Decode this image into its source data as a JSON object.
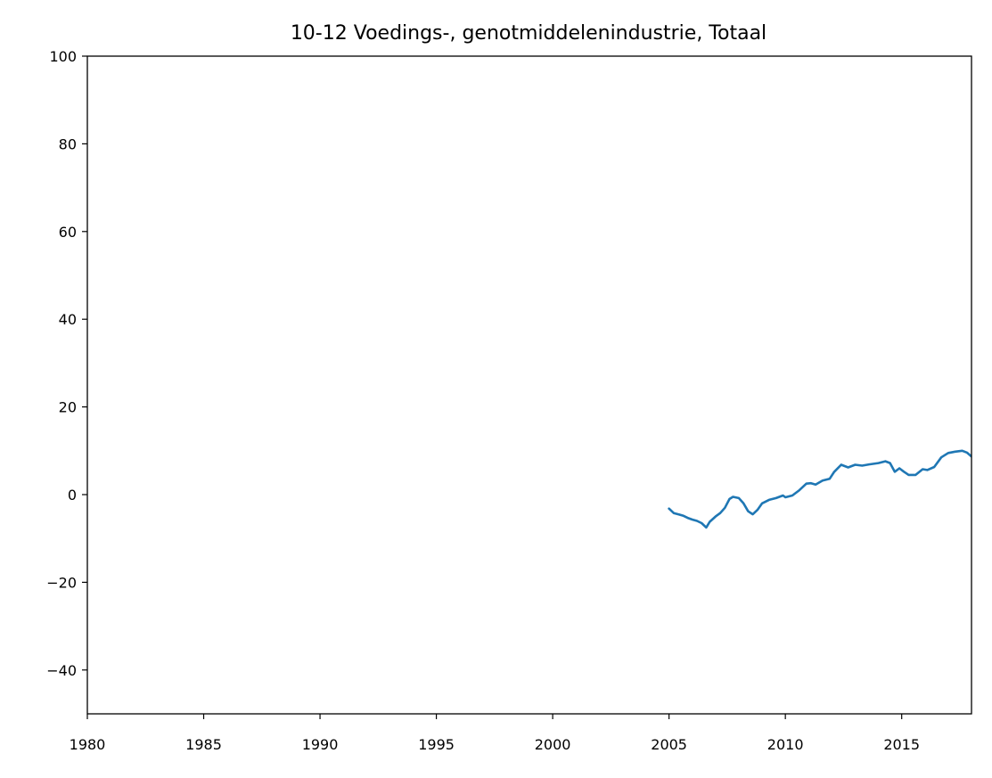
{
  "chart_data": {
    "type": "line",
    "title": "10-12 Voedings-, genotmiddelenindustrie, Totaal",
    "xlabel": "",
    "ylabel": "",
    "xlim": [
      1980,
      2018
    ],
    "ylim": [
      -50,
      100
    ],
    "x_ticks": [
      1980,
      1985,
      1990,
      1995,
      2000,
      2005,
      2010,
      2015
    ],
    "y_ticks": [
      -40,
      -20,
      0,
      20,
      40,
      60,
      80,
      100
    ],
    "x_tick_labels": [
      "1980",
      "1985",
      "1990",
      "1995",
      "2000",
      "2005",
      "2010",
      "2015"
    ],
    "y_tick_labels": [
      "−40",
      "−20",
      "0",
      "20",
      "40",
      "60",
      "80",
      "100"
    ],
    "grid": false,
    "legend": "none",
    "line_color": "#1f77b4",
    "series": [
      {
        "x": [
          2005.0,
          2005.2,
          2005.4,
          2005.6,
          2005.8,
          2006.0,
          2006.2,
          2006.4,
          2006.6,
          2006.75,
          2007.0,
          2007.2,
          2007.4,
          2007.6,
          2007.75,
          2008.0,
          2008.2,
          2008.4,
          2008.6,
          2008.8,
          2009.0,
          2009.3,
          2009.6,
          2009.9,
          2010.0,
          2010.3,
          2010.6,
          2010.9,
          2011.1,
          2011.3,
          2011.6,
          2011.9,
          2012.1,
          2012.4,
          2012.7,
          2013.0,
          2013.3,
          2013.6,
          2014.0,
          2014.3,
          2014.5,
          2014.7,
          2014.9,
          2015.1,
          2015.3,
          2015.6,
          2015.9,
          2016.1,
          2016.4,
          2016.7,
          2017.0,
          2017.3,
          2017.6,
          2017.8,
          2018.0
        ],
        "y": [
          -3.2,
          -4.2,
          -4.5,
          -4.8,
          -5.3,
          -5.7,
          -6.0,
          -6.5,
          -7.5,
          -6.2,
          -5.0,
          -4.2,
          -3.0,
          -1.0,
          -0.5,
          -0.8,
          -2.0,
          -3.8,
          -4.5,
          -3.5,
          -2.0,
          -1.2,
          -0.8,
          -0.2,
          -0.6,
          -0.2,
          1.0,
          2.5,
          2.6,
          2.3,
          3.2,
          3.6,
          5.2,
          6.8,
          6.2,
          6.8,
          6.6,
          6.9,
          7.2,
          7.6,
          7.2,
          5.2,
          6.0,
          5.2,
          4.5,
          4.5,
          5.8,
          5.6,
          6.3,
          8.5,
          9.5,
          9.8,
          10.0,
          9.6,
          8.7
        ]
      }
    ]
  }
}
